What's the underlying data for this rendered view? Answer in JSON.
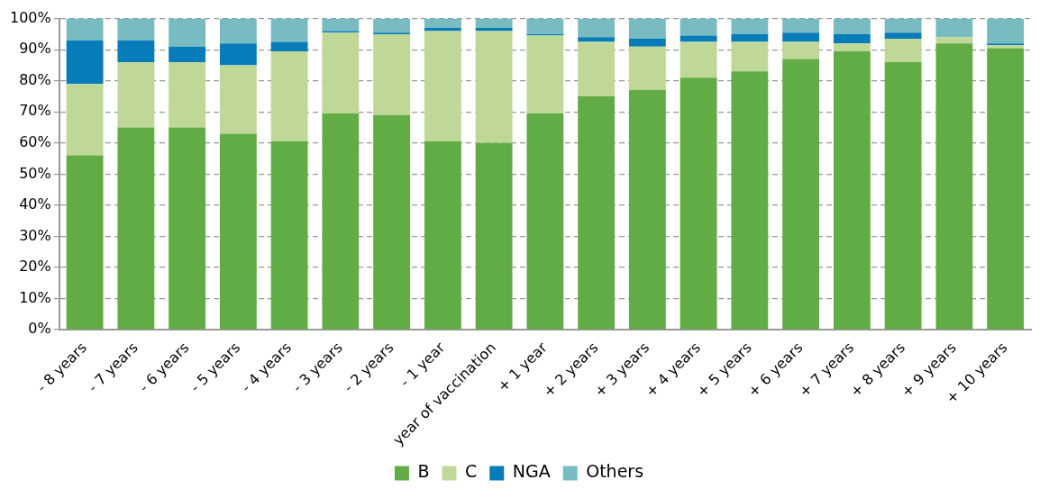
{
  "chart_data": {
    "type": "bar",
    "stacked": true,
    "categories": [
      "- 8 years",
      "- 7 years",
      "- 6 years",
      "- 5 years",
      "- 4 years",
      "- 3 years",
      "- 2 years",
      "- 1 year",
      "year of vaccination",
      "+ 1 year",
      "+ 2 years",
      "+ 3 years",
      "+ 4 years",
      "+ 5 years",
      "+ 6 years",
      "+ 7 years",
      "+ 8 years",
      "+ 9 years",
      "+ 10 years"
    ],
    "series": [
      {
        "name": "B",
        "color": "#62ac46",
        "values": [
          56,
          65,
          65,
          63,
          60.5,
          69.5,
          69,
          60.5,
          60,
          69.5,
          75,
          77,
          81,
          83,
          87,
          89.5,
          86,
          92,
          90.5
        ]
      },
      {
        "name": "C",
        "color": "#bfd897",
        "values": [
          23,
          21,
          21,
          22,
          29,
          26,
          26,
          35.5,
          36,
          25,
          17.5,
          14,
          11.5,
          9.5,
          5.5,
          2.5,
          7.5,
          2,
          1
        ]
      },
      {
        "name": "NGA",
        "color": "#087cb8",
        "values": [
          14,
          7,
          5,
          7,
          3,
          0.5,
          0.5,
          1,
          1,
          0.5,
          1.5,
          2.5,
          2,
          2.5,
          3,
          3,
          2,
          0,
          0.5
        ]
      },
      {
        "name": "Others",
        "color": "#78bbc0",
        "values": [
          7,
          7,
          9,
          8,
          7.5,
          4,
          4.5,
          3,
          3,
          5,
          6,
          6.5,
          5.5,
          5,
          4.5,
          5,
          4.5,
          6,
          8
        ]
      }
    ],
    "ylim": [
      0,
      100
    ],
    "yticks": [
      {
        "value": 0,
        "label": "0%"
      },
      {
        "value": 10,
        "label": "10%"
      },
      {
        "value": 20,
        "label": "20%"
      },
      {
        "value": 30,
        "label": "30%"
      },
      {
        "value": 40,
        "label": "40%"
      },
      {
        "value": 50,
        "label": "50%"
      },
      {
        "value": 60,
        "label": "60%"
      },
      {
        "value": 70,
        "label": "70%"
      },
      {
        "value": 80,
        "label": "80%"
      },
      {
        "value": 90,
        "label": "90%"
      },
      {
        "value": 100,
        "label": "100%"
      }
    ],
    "grid": "y",
    "legend": "bottom"
  }
}
